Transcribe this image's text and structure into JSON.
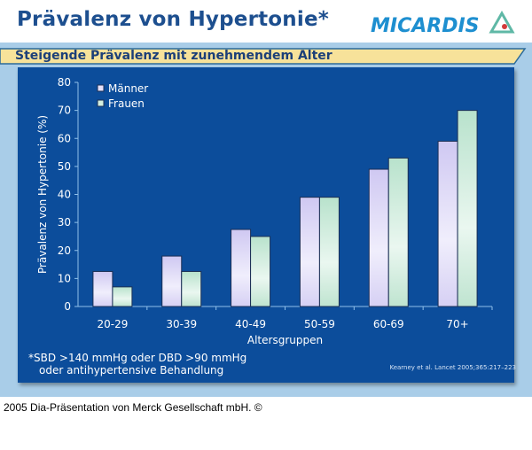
{
  "header": {
    "title": "Prävalenz von Hypertonie*",
    "logo_text": "MICARDIS"
  },
  "subtitle": "Steigende Prävalenz mit zunehmendem Alter",
  "chart_data": {
    "type": "bar",
    "ylabel": "Prävalenz von Hypertonie (%)",
    "xlabel": "Altersgruppen",
    "categories": [
      "20-29",
      "30-39",
      "40-49",
      "50-59",
      "60-69",
      "70+"
    ],
    "series": [
      {
        "name": "Männer",
        "values": [
          12.5,
          18,
          27.5,
          39,
          49,
          59
        ],
        "color": "#e4e0fa"
      },
      {
        "name": "Frauen",
        "values": [
          7,
          12.5,
          25,
          39,
          53,
          70
        ],
        "color": "#d4efe0"
      }
    ],
    "ylim": [
      0,
      80
    ],
    "yticks": [
      "0",
      "10",
      "20",
      "30",
      "40",
      "50",
      "60",
      "70",
      "80"
    ],
    "grid": false,
    "legend": "top-left"
  },
  "footnote": {
    "line1": "*SBD >140 mmHg oder DBD >90 mmHg",
    "line2": "oder antihypertensive Behandlung"
  },
  "citation": "Kearney et al. Lancet 2005;365:217–223",
  "footer": "2005 Dia-Präsentation von Merck Gesellschaft mbH. ©"
}
